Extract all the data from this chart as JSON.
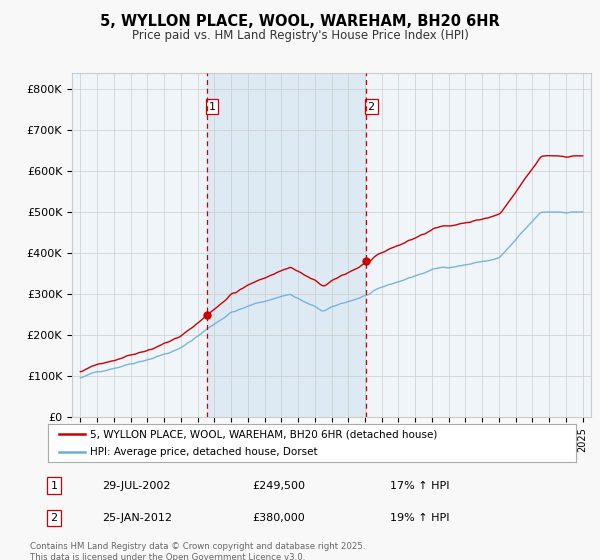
{
  "title": "5, WYLLON PLACE, WOOL, WAREHAM, BH20 6HR",
  "subtitle": "Price paid vs. HM Land Registry's House Price Index (HPI)",
  "legend_line1": "5, WYLLON PLACE, WOOL, WAREHAM, BH20 6HR (detached house)",
  "legend_line2": "HPI: Average price, detached house, Dorset",
  "footer_line1": "Contains HM Land Registry data © Crown copyright and database right 2025.",
  "footer_line2": "This data is licensed under the Open Government Licence v3.0.",
  "table_rows": [
    {
      "num": "1",
      "date": "29-JUL-2002",
      "price": "£249,500",
      "hpi": "17% ↑ HPI"
    },
    {
      "num": "2",
      "date": "25-JAN-2012",
      "price": "£380,000",
      "hpi": "19% ↑ HPI"
    }
  ],
  "vline1_x": 2002.57,
  "vline2_x": 2012.07,
  "line_color_red": "#cc0000",
  "line_color_blue": "#6baed6",
  "shade_color": "#ddeeff",
  "vline_color": "#cc0000",
  "background_color": "#f8f8f8",
  "grid_color": "#cccccc",
  "ylim": [
    0,
    840000
  ],
  "yticks": [
    0,
    100000,
    200000,
    300000,
    400000,
    500000,
    600000,
    700000,
    800000
  ],
  "ytick_labels": [
    "£0",
    "£100K",
    "£200K",
    "£300K",
    "£400K",
    "£500K",
    "£600K",
    "£700K",
    "£800K"
  ],
  "xlim": [
    1994.5,
    2025.5
  ],
  "xticks": [
    1995,
    1996,
    1997,
    1998,
    1999,
    2000,
    2001,
    2002,
    2003,
    2004,
    2005,
    2006,
    2007,
    2008,
    2009,
    2010,
    2011,
    2012,
    2013,
    2014,
    2015,
    2016,
    2017,
    2018,
    2019,
    2020,
    2021,
    2022,
    2023,
    2024,
    2025
  ]
}
